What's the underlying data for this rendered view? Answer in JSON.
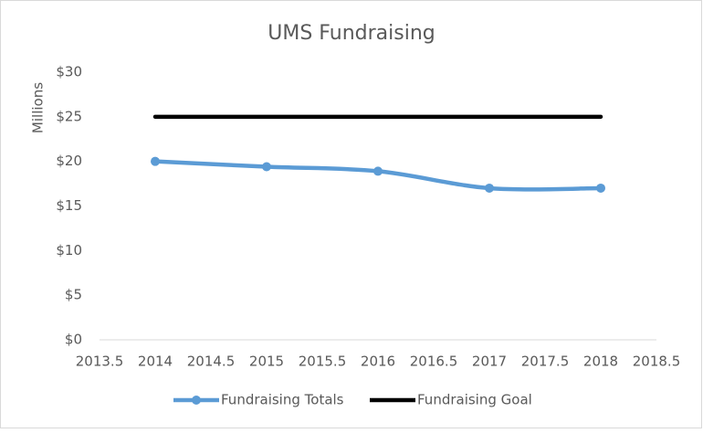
{
  "chart_data": {
    "type": "line",
    "title": "UMS Fundraising",
    "y_label": "Millions",
    "x": [
      2014,
      2015,
      2016,
      2017,
      2018
    ],
    "series": [
      {
        "name": "Fundraising Totals",
        "color": "#5b9bd5",
        "values": [
          20,
          19.4,
          18.9,
          17,
          17
        ],
        "markers": true,
        "smooth": true
      },
      {
        "name": "Fundraising Goal",
        "color": "#000000",
        "values": [
          25,
          25,
          25,
          25,
          25
        ],
        "markers": false,
        "smooth": false
      }
    ],
    "xlim": [
      2013.5,
      2018.5
    ],
    "xticks": [
      2013.5,
      2014,
      2014.5,
      2015,
      2015.5,
      2016,
      2016.5,
      2017,
      2017.5,
      2018,
      2018.5
    ],
    "ylim": [
      0,
      30
    ],
    "yticks": [
      {
        "value": 0,
        "label": "$0"
      },
      {
        "value": 5,
        "label": "$5"
      },
      {
        "value": 10,
        "label": "$10"
      },
      {
        "value": 15,
        "label": "$15"
      },
      {
        "value": 20,
        "label": "$20"
      },
      {
        "value": 25,
        "label": "$25"
      },
      {
        "value": 30,
        "label": "$30"
      }
    ],
    "grid": false,
    "legend": "bottom"
  }
}
